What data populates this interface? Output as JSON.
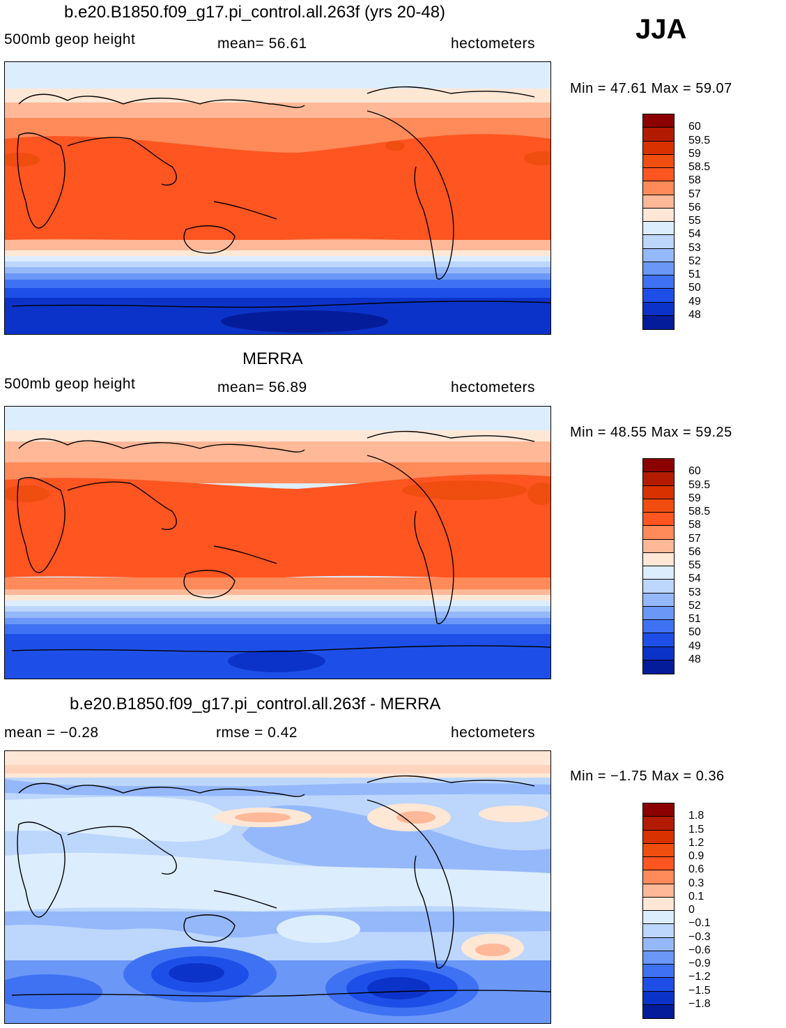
{
  "season": "JJA",
  "panels": [
    {
      "title": "b.e20.B1850.f09_g17.pi_control.all.263f (yrs 20-48)",
      "left_label": "500mb geop height",
      "center_label": "mean=   56.61",
      "right_label": "hectometers",
      "minmax": "Min =   47.61  Max =   59.07"
    },
    {
      "title": "MERRA",
      "left_label": "500mb geop height",
      "center_label": "mean=   56.89",
      "right_label": "hectometers",
      "minmax": "Min =   48.55  Max =   59.25"
    },
    {
      "title": "b.e20.B1850.f09_g17.pi_control.all.263f - MERRA",
      "left_label": "mean =   −0.28",
      "center_label": "rmse =     0.42",
      "right_label": "hectometers",
      "minmax": "Min =   −1.75  Max =     0.36"
    }
  ],
  "colorbars": {
    "abs_colors": [
      "#8b0000",
      "#b31b00",
      "#d93200",
      "#f04d10",
      "#ff5520",
      "#ff8a5a",
      "#ffb898",
      "#ffe7d6",
      "#dcedfe",
      "#bcd6fc",
      "#95b8fb",
      "#6b97f7",
      "#3f72f2",
      "#1d4fe8",
      "#0c33c9",
      "#051c9a",
      "#00007e"
    ],
    "abs_labels": [
      "60",
      "59.5",
      "59",
      "58.5",
      "58",
      "57",
      "56",
      "55",
      "54",
      "53",
      "52",
      "51",
      "50",
      "49",
      "48"
    ],
    "diff_colors": [
      "#8b0000",
      "#b31b00",
      "#d93200",
      "#f04d10",
      "#ff5520",
      "#ff8a5a",
      "#ffb898",
      "#ffe7d6",
      "#dcedfe",
      "#bcd6fc",
      "#95b8fb",
      "#6b97f7",
      "#3f72f2",
      "#1d4fe8",
      "#0c33c9",
      "#051c9a"
    ],
    "diff_labels": [
      "1.8",
      "1.5",
      "1.2",
      "0.9",
      "0.6",
      "0.3",
      "0.1",
      "0",
      "−0.1",
      "−0.3",
      "−0.6",
      "−0.9",
      "−1.2",
      "−1.5",
      "−1.8"
    ]
  }
}
